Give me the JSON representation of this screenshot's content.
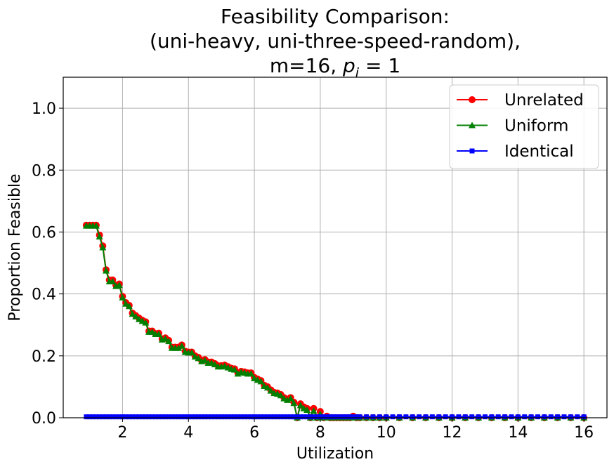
{
  "chart_data": {
    "type": "line",
    "title_lines": [
      "Feasibility Comparison:",
      "(uni-heavy, uni-three-speed-random),",
      "m=16, ",
      "p",
      "i",
      " = 1"
    ],
    "xlabel": "Utilization",
    "ylabel": "Proportion Feasible",
    "xlim": [
      0.2,
      16.7
    ],
    "ylim": [
      0.0,
      1.1
    ],
    "xticks": [
      2,
      4,
      6,
      8,
      10,
      12,
      14,
      16
    ],
    "yticks": [
      0.0,
      0.2,
      0.4,
      0.6,
      0.8,
      1.0
    ],
    "xtick_labels": [
      "2",
      "4",
      "6",
      "8",
      "10",
      "12",
      "14",
      "16"
    ],
    "ytick_labels": [
      "0.0",
      "0.2",
      "0.4",
      "0.6",
      "0.8",
      "1.0"
    ],
    "grid": true,
    "legend_position": "top-right",
    "series": [
      {
        "name": "Unrelated",
        "color": "#ff0000",
        "marker": "circle",
        "x": [
          0.9,
          1.0,
          1.1,
          1.2,
          1.3,
          1.4,
          1.5,
          1.6,
          1.7,
          1.8,
          1.9,
          2.0,
          2.1,
          2.2,
          2.3,
          2.4,
          2.5,
          2.6,
          2.7,
          2.8,
          2.9,
          3.0,
          3.1,
          3.2,
          3.3,
          3.4,
          3.5,
          3.6,
          3.7,
          3.8,
          3.9,
          4.0,
          4.1,
          4.2,
          4.3,
          4.4,
          4.5,
          4.6,
          4.7,
          4.8,
          4.9,
          5.0,
          5.1,
          5.2,
          5.3,
          5.4,
          5.5,
          5.6,
          5.7,
          5.8,
          5.9,
          6.0,
          6.1,
          6.2,
          6.3,
          6.4,
          6.5,
          6.6,
          6.7,
          6.8,
          6.9,
          7.0,
          7.1,
          7.2,
          7.3,
          7.4,
          7.5,
          7.6,
          7.7,
          7.8,
          7.9,
          8.0,
          8.1,
          8.2,
          8.3,
          8.4,
          8.5,
          8.6,
          8.7,
          8.8,
          8.9,
          9.0,
          9.1,
          9.2,
          9.4,
          9.6,
          9.8,
          10.0,
          10.4,
          10.8,
          11.2,
          11.6,
          12.0,
          12.4,
          12.8,
          13.2,
          13.6,
          14.0,
          14.4,
          14.8,
          15.2,
          15.6,
          16.0
        ],
        "values": [
          0.622,
          0.622,
          0.622,
          0.622,
          0.59,
          0.555,
          0.478,
          0.445,
          0.445,
          0.428,
          0.432,
          0.392,
          0.372,
          0.363,
          0.338,
          0.33,
          0.322,
          0.315,
          0.31,
          0.28,
          0.28,
          0.272,
          0.273,
          0.255,
          0.258,
          0.25,
          0.228,
          0.228,
          0.228,
          0.235,
          0.215,
          0.212,
          0.212,
          0.2,
          0.195,
          0.185,
          0.188,
          0.18,
          0.18,
          0.175,
          0.168,
          0.168,
          0.17,
          0.165,
          0.16,
          0.158,
          0.145,
          0.15,
          0.148,
          0.145,
          0.145,
          0.13,
          0.125,
          0.12,
          0.105,
          0.1,
          0.09,
          0.082,
          0.08,
          0.075,
          0.065,
          0.06,
          0.065,
          0.05,
          0.0,
          0.045,
          0.035,
          0.03,
          0.0,
          0.03,
          0.0,
          0.02,
          0.0,
          0.005,
          0.0,
          0.0,
          0.0,
          0.0,
          0.0,
          0.0,
          0.0,
          0.005,
          0.0,
          0.0,
          0.0,
          0.0,
          0.0,
          0.0,
          0.0,
          0.0,
          0.0,
          0.0,
          0.0,
          0.0,
          0.0,
          0.0,
          0.0,
          0.0,
          0.0,
          0.0,
          0.0,
          0.0,
          0.0
        ]
      },
      {
        "name": "Uniform",
        "color": "#008000",
        "marker": "triangle",
        "x": [
          0.9,
          1.0,
          1.1,
          1.2,
          1.3,
          1.4,
          1.5,
          1.6,
          1.7,
          1.8,
          1.9,
          2.0,
          2.1,
          2.2,
          2.3,
          2.4,
          2.5,
          2.6,
          2.7,
          2.8,
          2.9,
          3.0,
          3.1,
          3.2,
          3.3,
          3.4,
          3.5,
          3.6,
          3.7,
          3.8,
          3.9,
          4.0,
          4.1,
          4.2,
          4.3,
          4.4,
          4.5,
          4.6,
          4.7,
          4.8,
          4.9,
          5.0,
          5.1,
          5.2,
          5.3,
          5.4,
          5.5,
          5.6,
          5.7,
          5.8,
          5.9,
          6.0,
          6.1,
          6.2,
          6.3,
          6.4,
          6.5,
          6.6,
          6.7,
          6.8,
          6.9,
          7.0,
          7.1,
          7.2,
          7.3,
          7.4,
          7.5,
          7.6,
          7.7,
          7.8,
          7.9,
          8.0,
          8.1,
          8.2,
          8.3,
          8.4,
          8.5,
          8.6,
          8.7,
          8.8,
          8.9,
          9.0,
          9.1,
          9.2,
          9.4,
          9.6,
          9.8,
          10.0,
          10.4,
          10.8,
          11.2,
          11.6,
          12.0,
          12.4,
          12.8,
          13.2,
          13.6,
          14.0,
          14.4,
          14.8,
          15.2,
          15.6,
          16.0
        ],
        "values": [
          0.62,
          0.62,
          0.62,
          0.62,
          0.585,
          0.55,
          0.475,
          0.44,
          0.44,
          0.425,
          0.428,
          0.388,
          0.368,
          0.36,
          0.335,
          0.327,
          0.318,
          0.312,
          0.307,
          0.277,
          0.277,
          0.27,
          0.27,
          0.252,
          0.255,
          0.247,
          0.225,
          0.225,
          0.225,
          0.232,
          0.212,
          0.21,
          0.21,
          0.197,
          0.192,
          0.182,
          0.185,
          0.177,
          0.177,
          0.172,
          0.165,
          0.165,
          0.167,
          0.162,
          0.157,
          0.155,
          0.142,
          0.147,
          0.145,
          0.142,
          0.142,
          0.127,
          0.122,
          0.117,
          0.102,
          0.097,
          0.087,
          0.079,
          0.077,
          0.072,
          0.062,
          0.057,
          0.062,
          0.047,
          0.0,
          0.04,
          0.03,
          0.025,
          0.0,
          0.022,
          0.0,
          0.012,
          0.0,
          0.0,
          0.0,
          0.0,
          0.0,
          0.0,
          0.0,
          0.0,
          0.0,
          0.0,
          0.0,
          0.0,
          0.0,
          0.0,
          0.0,
          0.0,
          0.0,
          0.0,
          0.0,
          0.0,
          0.0,
          0.0,
          0.0,
          0.0,
          0.0,
          0.0,
          0.0,
          0.0,
          0.0,
          0.0,
          0.0
        ]
      },
      {
        "name": "Identical",
        "color": "#0000ff",
        "marker": "square",
        "x": [
          0.9,
          1.0,
          1.1,
          1.2,
          1.3,
          1.4,
          1.5,
          1.6,
          1.7,
          1.8,
          1.9,
          2.0,
          2.1,
          2.2,
          2.3,
          2.4,
          2.5,
          2.6,
          2.7,
          2.8,
          2.9,
          3.0,
          3.1,
          3.2,
          3.3,
          3.4,
          3.5,
          3.6,
          3.7,
          3.8,
          3.9,
          4.0,
          4.1,
          4.2,
          4.3,
          4.4,
          4.5,
          4.6,
          4.7,
          4.8,
          4.9,
          5.0,
          5.1,
          5.2,
          5.3,
          5.4,
          5.5,
          5.6,
          5.7,
          5.8,
          5.9,
          6.0,
          6.1,
          6.2,
          6.3,
          6.4,
          6.5,
          6.6,
          6.7,
          6.8,
          6.9,
          7.0,
          7.1,
          7.2,
          7.3,
          7.4,
          7.5,
          7.6,
          7.7,
          7.8,
          7.9,
          8.0,
          8.1,
          8.2,
          8.3,
          8.4,
          8.5,
          8.6,
          8.7,
          8.8,
          8.9,
          9.0,
          9.1,
          9.2,
          9.4,
          9.6,
          9.8,
          10.0,
          10.2,
          10.4,
          10.6,
          10.8,
          11.0,
          11.2,
          11.4,
          11.6,
          11.8,
          12.0,
          12.2,
          12.4,
          12.6,
          12.8,
          13.0,
          13.2,
          13.4,
          13.6,
          13.8,
          14.0,
          14.2,
          14.4,
          14.6,
          14.8,
          15.0,
          15.2,
          15.4,
          15.6,
          15.8,
          16.0
        ],
        "values": [
          0.003,
          0.003,
          0.003,
          0.003,
          0.003,
          0.003,
          0.003,
          0.003,
          0.003,
          0.003,
          0.003,
          0.003,
          0.003,
          0.003,
          0.003,
          0.003,
          0.003,
          0.003,
          0.003,
          0.003,
          0.003,
          0.003,
          0.003,
          0.003,
          0.003,
          0.003,
          0.003,
          0.003,
          0.003,
          0.003,
          0.003,
          0.003,
          0.003,
          0.003,
          0.003,
          0.003,
          0.003,
          0.003,
          0.003,
          0.003,
          0.003,
          0.003,
          0.003,
          0.003,
          0.003,
          0.003,
          0.003,
          0.003,
          0.003,
          0.003,
          0.003,
          0.003,
          0.003,
          0.003,
          0.003,
          0.003,
          0.003,
          0.003,
          0.003,
          0.003,
          0.003,
          0.003,
          0.003,
          0.003,
          0.003,
          0.003,
          0.003,
          0.003,
          0.003,
          0.003,
          0.003,
          0.003,
          0.003,
          0.003,
          0.003,
          0.003,
          0.003,
          0.003,
          0.003,
          0.003,
          0.003,
          0.003,
          0.003,
          0.003,
          0.003,
          0.003,
          0.003,
          0.003,
          0.003,
          0.003,
          0.003,
          0.003,
          0.003,
          0.003,
          0.003,
          0.003,
          0.003,
          0.003,
          0.003,
          0.003,
          0.003,
          0.003,
          0.003,
          0.003,
          0.003,
          0.003,
          0.003,
          0.003,
          0.003,
          0.003,
          0.003,
          0.003,
          0.003,
          0.003,
          0.003,
          0.003,
          0.003,
          0.003
        ]
      }
    ]
  }
}
